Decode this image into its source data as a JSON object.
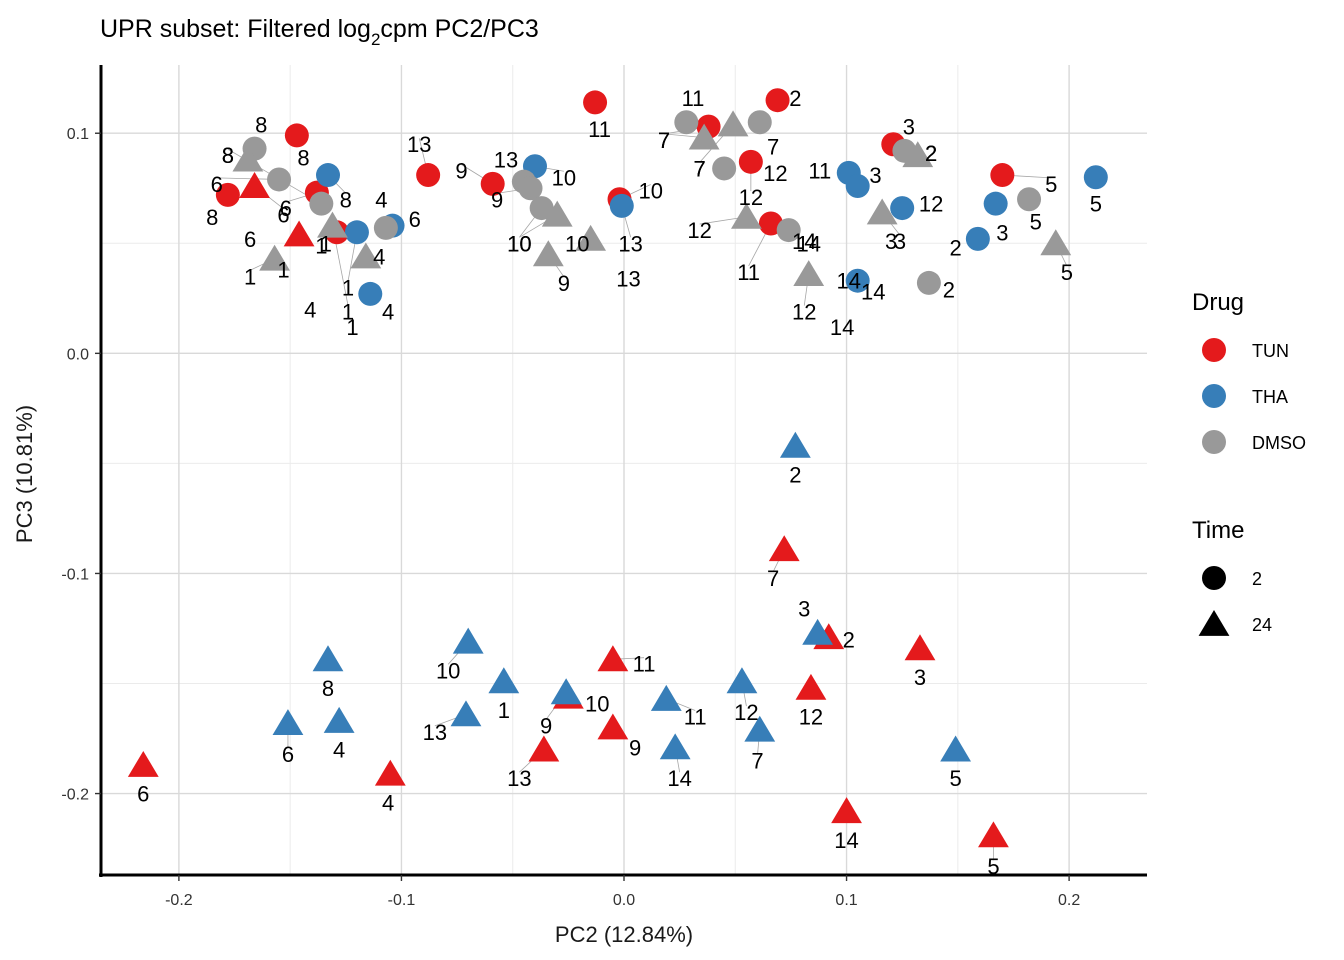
{
  "chart_data": {
    "type": "scatter",
    "title_parts": [
      "UPR subset: Filtered log",
      "2",
      "cpm PC2/PC3"
    ],
    "xlabel": "PC2 (12.84%)",
    "ylabel": "PC3 (10.81%)",
    "xlim": [
      -0.235,
      0.235
    ],
    "ylim": [
      -0.237,
      0.131
    ],
    "xticks": [
      -0.2,
      -0.1,
      0.0,
      0.1,
      0.2
    ],
    "xtick_labels": [
      "-0.2",
      "-0.1",
      "0.0",
      "0.1",
      "0.2"
    ],
    "yticks": [
      -0.2,
      -0.1,
      0.0,
      0.1
    ],
    "ytick_labels": [
      "-0.2",
      "-0.1",
      "0.0",
      "0.1"
    ],
    "grid": true,
    "legend_placement": "right",
    "colors": {
      "TUN": "#e41a1c",
      "THA": "#377eb8",
      "DMSO": "#999999"
    },
    "legends": [
      {
        "title": "Drug",
        "entries": [
          {
            "label": "TUN",
            "color": "#e41a1c",
            "shape": "circle"
          },
          {
            "label": "THA",
            "color": "#377eb8",
            "shape": "circle"
          },
          {
            "label": "DMSO",
            "color": "#999999",
            "shape": "circle"
          }
        ]
      },
      {
        "title": "Time",
        "entries": [
          {
            "label": "2",
            "color": "#000000",
            "shape": "circle"
          },
          {
            "label": "24",
            "color": "#000000",
            "shape": "triangle"
          }
        ]
      }
    ],
    "points": [
      {
        "drug": "TUN",
        "time": 2,
        "x": -0.013,
        "y": 0.114,
        "label": "11",
        "lx": -0.011,
        "ly": 0.102
      },
      {
        "drug": "TUN",
        "time": 2,
        "x": 0.069,
        "y": 0.115,
        "label": "2",
        "lx": 0.077,
        "ly": 0.116
      },
      {
        "drug": "TUN",
        "time": 2,
        "x": 0.038,
        "y": 0.103,
        "label": "7",
        "lx": 0.018,
        "ly": 0.097
      },
      {
        "drug": "TUN",
        "time": 2,
        "x": 0.057,
        "y": 0.087,
        "label": "12",
        "lx": 0.057,
        "ly": 0.071
      },
      {
        "drug": "TUN",
        "time": 2,
        "x": 0.066,
        "y": 0.059,
        "label": "11",
        "lx": 0.056,
        "ly": 0.037
      },
      {
        "drug": "TUN",
        "time": 2,
        "x": 0.121,
        "y": 0.095,
        "label": "3",
        "lx": 0.128,
        "ly": 0.103
      },
      {
        "drug": "TUN",
        "time": 2,
        "x": 0.17,
        "y": 0.081,
        "label": "5",
        "lx": 0.192,
        "ly": 0.077
      },
      {
        "drug": "TUN",
        "time": 2,
        "x": -0.002,
        "y": 0.07,
        "label": "10",
        "lx": 0.012,
        "ly": 0.074
      },
      {
        "drug": "TUN",
        "time": 2,
        "x": -0.088,
        "y": 0.081,
        "label": "13",
        "lx": -0.092,
        "ly": 0.095
      },
      {
        "drug": "TUN",
        "time": 2,
        "x": -0.059,
        "y": 0.077,
        "label": "9",
        "lx": -0.073,
        "ly": 0.083
      },
      {
        "drug": "TUN",
        "time": 2,
        "x": -0.147,
        "y": 0.099,
        "label": "8",
        "lx": -0.144,
        "ly": 0.089
      },
      {
        "drug": "TUN",
        "time": 2,
        "x": -0.178,
        "y": 0.072,
        "label": "8",
        "lx": -0.185,
        "ly": 0.062
      },
      {
        "drug": "TUN",
        "time": 2,
        "x": -0.138,
        "y": 0.073,
        "label": "6",
        "lx": -0.152,
        "ly": 0.066
      },
      {
        "drug": "TUN",
        "time": 2,
        "x": -0.129,
        "y": 0.055,
        "label": "1",
        "lx": -0.136,
        "ly": 0.049
      },
      {
        "drug": "THA",
        "time": 2,
        "x": -0.133,
        "y": 0.081,
        "label": "8",
        "lx": -0.125,
        "ly": 0.07
      },
      {
        "drug": "THA",
        "time": 2,
        "x": -0.12,
        "y": 0.055,
        "label": "1",
        "lx": -0.124,
        "ly": 0.03
      },
      {
        "drug": "THA",
        "time": 2,
        "x": -0.104,
        "y": 0.058,
        "label": "6",
        "lx": -0.094,
        "ly": 0.061
      },
      {
        "drug": "THA",
        "time": 2,
        "x": -0.114,
        "y": 0.027,
        "label": "4",
        "lx": -0.106,
        "ly": 0.019
      },
      {
        "drug": "THA",
        "time": 2,
        "x": -0.04,
        "y": 0.085,
        "label": "10",
        "lx": -0.027,
        "ly": 0.08
      },
      {
        "drug": "THA",
        "time": 2,
        "x": -0.001,
        "y": 0.067,
        "label": "13",
        "lx": 0.003,
        "ly": 0.05
      },
      {
        "drug": "THA",
        "time": 2,
        "x": 0.101,
        "y": 0.082,
        "label": "11",
        "lx": 0.088,
        "ly": 0.083
      },
      {
        "drug": "THA",
        "time": 2,
        "x": 0.105,
        "y": 0.076,
        "label": "3",
        "lx": 0.113,
        "ly": 0.081
      },
      {
        "drug": "THA",
        "time": 2,
        "x": 0.125,
        "y": 0.066,
        "label": "12",
        "lx": 0.138,
        "ly": 0.068
      },
      {
        "drug": "THA",
        "time": 2,
        "x": 0.105,
        "y": 0.033,
        "label": "14",
        "lx": 0.101,
        "ly": 0.033
      },
      {
        "drug": "THA",
        "time": 2,
        "x": 0.159,
        "y": 0.052,
        "label": "2",
        "lx": 0.149,
        "ly": 0.048
      },
      {
        "drug": "THA",
        "time": 2,
        "x": 0.167,
        "y": 0.068,
        "label": "3",
        "lx": 0.17,
        "ly": 0.055
      },
      {
        "drug": "THA",
        "time": 2,
        "x": 0.212,
        "y": 0.08,
        "label": "5",
        "lx": 0.212,
        "ly": 0.068
      },
      {
        "drug": "DMSO",
        "time": 2,
        "x": 0.028,
        "y": 0.105,
        "label": "11",
        "lx": 0.031,
        "ly": 0.116
      },
      {
        "drug": "DMSO",
        "time": 2,
        "x": 0.061,
        "y": 0.105,
        "label": "7",
        "lx": 0.067,
        "ly": 0.094
      },
      {
        "drug": "DMSO",
        "time": 2,
        "x": 0.045,
        "y": 0.084,
        "label": "7",
        "lx": 0.034,
        "ly": 0.084
      },
      {
        "drug": "DMSO",
        "time": 2,
        "x": 0.074,
        "y": 0.056,
        "label": "14",
        "lx": 0.081,
        "ly": 0.051
      },
      {
        "drug": "DMSO",
        "time": 2,
        "x": 0.126,
        "y": 0.092,
        "label": "2",
        "lx": 0.138,
        "ly": 0.091
      },
      {
        "drug": "DMSO",
        "time": 2,
        "x": 0.137,
        "y": 0.032,
        "label": "2",
        "lx": 0.146,
        "ly": 0.029
      },
      {
        "drug": "DMSO",
        "time": 2,
        "x": 0.182,
        "y": 0.07,
        "label": "5",
        "lx": 0.185,
        "ly": 0.06
      },
      {
        "drug": "DMSO",
        "time": 2,
        "x": -0.045,
        "y": 0.078,
        "label": "13",
        "lx": -0.053,
        "ly": 0.088
      },
      {
        "drug": "DMSO",
        "time": 2,
        "x": -0.042,
        "y": 0.075,
        "label": "9",
        "lx": -0.057,
        "ly": 0.07
      },
      {
        "drug": "DMSO",
        "time": 2,
        "x": -0.037,
        "y": 0.066,
        "label": "10",
        "lx": -0.047,
        "ly": 0.05
      },
      {
        "drug": "DMSO",
        "time": 2,
        "x": -0.166,
        "y": 0.093,
        "label": "8",
        "lx": -0.163,
        "ly": 0.104
      },
      {
        "drug": "DMSO",
        "time": 2,
        "x": -0.155,
        "y": 0.079,
        "label": "6",
        "lx": -0.183,
        "ly": 0.077
      },
      {
        "drug": "DMSO",
        "time": 2,
        "x": -0.136,
        "y": 0.068,
        "label": "8",
        "lx": -0.178,
        "ly": 0.09
      },
      {
        "drug": "DMSO",
        "time": 2,
        "x": -0.107,
        "y": 0.057,
        "label": "4",
        "lx": -0.109,
        "ly": 0.07
      },
      {
        "drug": "TUN",
        "time": 24,
        "x": -0.166,
        "y": 0.076,
        "label": "6",
        "lx": -0.153,
        "ly": 0.063
      },
      {
        "drug": "TUN",
        "time": 24,
        "x": -0.146,
        "y": 0.054,
        "label": "1",
        "lx": -0.134,
        "ly": 0.05
      },
      {
        "drug": "TUN",
        "time": 24,
        "x": 0.072,
        "y": -0.089,
        "label": "7",
        "lx": 0.067,
        "ly": -0.102
      },
      {
        "drug": "TUN",
        "time": 24,
        "x": 0.092,
        "y": -0.129,
        "label": "2",
        "lx": 0.101,
        "ly": -0.13
      },
      {
        "drug": "TUN",
        "time": 24,
        "x": 0.133,
        "y": -0.134,
        "label": "3",
        "lx": 0.133,
        "ly": -0.147
      },
      {
        "drug": "TUN",
        "time": 24,
        "x": 0.084,
        "y": -0.152,
        "label": "12",
        "lx": 0.084,
        "ly": -0.165
      },
      {
        "drug": "TUN",
        "time": 24,
        "x": 0.1,
        "y": -0.208,
        "label": "14",
        "lx": 0.1,
        "ly": -0.221
      },
      {
        "drug": "TUN",
        "time": 24,
        "x": 0.166,
        "y": -0.219,
        "label": "5",
        "lx": 0.166,
        "ly": -0.233
      },
      {
        "drug": "TUN",
        "time": 24,
        "x": -0.005,
        "y": -0.139,
        "label": "11",
        "lx": 0.009,
        "ly": -0.141
      },
      {
        "drug": "TUN",
        "time": 24,
        "x": -0.025,
        "y": -0.156,
        "label": "10",
        "lx": -0.012,
        "ly": -0.159
      },
      {
        "drug": "TUN",
        "time": 24,
        "x": -0.005,
        "y": -0.17,
        "label": "9",
        "lx": 0.005,
        "ly": -0.179
      },
      {
        "drug": "TUN",
        "time": 24,
        "x": -0.036,
        "y": -0.18,
        "label": "13",
        "lx": -0.047,
        "ly": -0.193
      },
      {
        "drug": "TUN",
        "time": 24,
        "x": -0.105,
        "y": -0.191,
        "label": "4",
        "lx": -0.106,
        "ly": -0.204
      },
      {
        "drug": "TUN",
        "time": 24,
        "x": -0.216,
        "y": -0.187,
        "label": "6",
        "lx": -0.216,
        "ly": -0.2
      },
      {
        "drug": "THA",
        "time": 24,
        "x": 0.077,
        "y": -0.042,
        "label": "2",
        "lx": 0.077,
        "ly": -0.055
      },
      {
        "drug": "THA",
        "time": 24,
        "x": 0.087,
        "y": -0.127,
        "label": "3",
        "lx": 0.081,
        "ly": -0.116
      },
      {
        "drug": "THA",
        "time": 24,
        "x": 0.053,
        "y": -0.149,
        "label": "12",
        "lx": 0.055,
        "ly": -0.163
      },
      {
        "drug": "THA",
        "time": 24,
        "x": 0.061,
        "y": -0.171,
        "label": "7",
        "lx": 0.06,
        "ly": -0.185
      },
      {
        "drug": "THA",
        "time": 24,
        "x": 0.019,
        "y": -0.157,
        "label": "11",
        "lx": 0.032,
        "ly": -0.165
      },
      {
        "drug": "THA",
        "time": 24,
        "x": 0.023,
        "y": -0.179,
        "label": "14",
        "lx": 0.025,
        "ly": -0.193
      },
      {
        "drug": "THA",
        "time": 24,
        "x": 0.149,
        "y": -0.18,
        "label": "5",
        "lx": 0.149,
        "ly": -0.193
      },
      {
        "drug": "THA",
        "time": 24,
        "x": -0.07,
        "y": -0.131,
        "label": "10",
        "lx": -0.079,
        "ly": -0.144
      },
      {
        "drug": "THA",
        "time": 24,
        "x": -0.054,
        "y": -0.149,
        "label": "1",
        "lx": -0.054,
        "ly": -0.162
      },
      {
        "drug": "THA",
        "time": 24,
        "x": -0.071,
        "y": -0.164,
        "label": "13",
        "lx": -0.085,
        "ly": -0.172
      },
      {
        "drug": "THA",
        "time": 24,
        "x": -0.026,
        "y": -0.154,
        "label": "9",
        "lx": -0.035,
        "ly": -0.169
      },
      {
        "drug": "THA",
        "time": 24,
        "x": -0.133,
        "y": -0.139,
        "label": "8",
        "lx": -0.133,
        "ly": -0.152
      },
      {
        "drug": "THA",
        "time": 24,
        "x": -0.128,
        "y": -0.167,
        "label": "4",
        "lx": -0.128,
        "ly": -0.18
      },
      {
        "drug": "THA",
        "time": 24,
        "x": -0.151,
        "y": -0.168,
        "label": "6",
        "lx": -0.151,
        "ly": -0.182
      },
      {
        "drug": "DMSO",
        "time": 24,
        "x": 0.036,
        "y": 0.098,
        "label": "7",
        "lx": 0.018,
        "ly": 0.097
      },
      {
        "drug": "DMSO",
        "time": 24,
        "x": 0.049,
        "y": 0.104,
        "label": "7",
        "lx": 0.034,
        "ly": 0.084
      },
      {
        "drug": "DMSO",
        "time": 24,
        "x": 0.055,
        "y": 0.062,
        "label": "12",
        "lx": 0.034,
        "ly": 0.056
      },
      {
        "drug": "DMSO",
        "time": 24,
        "x": 0.083,
        "y": 0.036,
        "label": "12",
        "lx": 0.081,
        "ly": 0.019
      },
      {
        "drug": "DMSO",
        "time": 24,
        "x": 0.116,
        "y": 0.064,
        "label": "3",
        "lx": 0.124,
        "ly": 0.051
      },
      {
        "drug": "DMSO",
        "time": 24,
        "x": 0.132,
        "y": 0.09,
        "label": "2",
        "lx": 0.138,
        "ly": 0.091
      },
      {
        "drug": "DMSO",
        "time": 24,
        "x": 0.194,
        "y": 0.05,
        "label": "5",
        "lx": 0.199,
        "ly": 0.037
      },
      {
        "drug": "DMSO",
        "time": 24,
        "x": -0.03,
        "y": 0.063,
        "label": "10",
        "lx": -0.047,
        "ly": 0.05
      },
      {
        "drug": "DMSO",
        "time": 24,
        "x": -0.015,
        "y": 0.052,
        "label": "10",
        "lx": -0.021,
        "ly": 0.05
      },
      {
        "drug": "DMSO",
        "time": 24,
        "x": -0.034,
        "y": 0.045,
        "label": "9",
        "lx": -0.027,
        "ly": 0.032
      },
      {
        "drug": "DMSO",
        "time": 24,
        "x": -0.169,
        "y": 0.088,
        "label": "8",
        "lx": -0.178,
        "ly": 0.09
      },
      {
        "drug": "DMSO",
        "time": 24,
        "x": -0.157,
        "y": 0.043,
        "label": "1",
        "lx": -0.168,
        "ly": 0.035
      },
      {
        "drug": "DMSO",
        "time": 24,
        "x": -0.131,
        "y": 0.058,
        "label": "1",
        "lx": -0.124,
        "ly": 0.019
      },
      {
        "drug": "DMSO",
        "time": 24,
        "x": -0.116,
        "y": 0.044,
        "label": "4",
        "lx": -0.11,
        "ly": 0.044
      }
    ],
    "extra_labels": [
      {
        "label": "1",
        "lx": -0.153,
        "ly": 0.038
      },
      {
        "label": "6",
        "lx": -0.168,
        "ly": 0.052
      },
      {
        "label": "4",
        "lx": -0.141,
        "ly": 0.02
      },
      {
        "label": "1",
        "lx": -0.122,
        "ly": 0.012
      },
      {
        "label": "14",
        "lx": 0.083,
        "ly": 0.05
      },
      {
        "label": "14",
        "lx": 0.112,
        "ly": 0.028
      },
      {
        "label": "14",
        "lx": 0.098,
        "ly": 0.012
      },
      {
        "label": "13",
        "lx": 0.002,
        "ly": 0.034
      },
      {
        "label": "12",
        "lx": 0.068,
        "ly": 0.082
      },
      {
        "label": "3",
        "lx": 0.12,
        "ly": 0.051
      }
    ]
  }
}
